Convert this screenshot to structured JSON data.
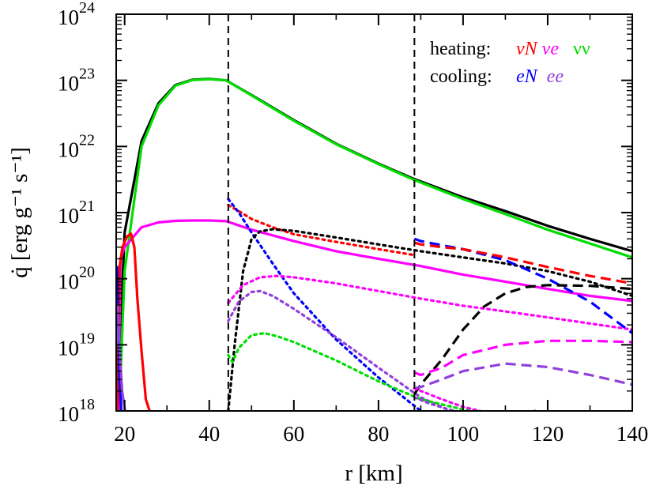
{
  "chart_data": {
    "type": "line",
    "xlabel": "r [km]",
    "ylabel": "q̇ [erg g⁻¹ s⁻¹]",
    "xlim": [
      18,
      140
    ],
    "ylim": [
      1e+18,
      1e+24
    ],
    "yscale": "log",
    "grid": false,
    "x_ticks": [
      20,
      40,
      60,
      80,
      100,
      120,
      140
    ],
    "y_ticks": [
      {
        "base": "10",
        "exp": "18",
        "value": 1e+18
      },
      {
        "base": "10",
        "exp": "19",
        "value": 1e+19
      },
      {
        "base": "10",
        "exp": "20",
        "value": 1e+20
      },
      {
        "base": "10",
        "exp": "21",
        "value": 1e+21
      },
      {
        "base": "10",
        "exp": "22",
        "value": 1e+22
      },
      {
        "base": "10",
        "exp": "23",
        "value": 1e+23
      },
      {
        "base": "10",
        "exp": "24",
        "value": 1e+24
      }
    ],
    "vlines": [
      44.5,
      88.5
    ],
    "legend": {
      "position": "top-right",
      "heating_label": "heating:",
      "cooling_label": "cooling:",
      "heating_items": [
        {
          "text": "νN",
          "color": "#ff0000"
        },
        {
          "text": "νe",
          "color": "#ff00ff"
        },
        {
          "text": "νν",
          "color": "#00dd00"
        }
      ],
      "cooling_items": [
        {
          "text": "eN",
          "color": "#0000ff"
        },
        {
          "text": "ee",
          "color": "#9040dd"
        }
      ]
    },
    "series": [
      {
        "color": "#000000",
        "dash": "solid",
        "x": [
          18.2,
          20,
          24,
          28,
          32,
          36,
          40,
          44,
          50,
          60,
          70,
          80,
          88,
          100,
          110,
          120,
          130,
          140
        ],
        "y": [
          1e+18,
          5e+20,
          1.2e+22,
          4.5e+22,
          8.5e+22,
          1.02e+23,
          1.05e+23,
          1e+23,
          6e+22,
          2.5e+22,
          1.1e+22,
          5.5e+21,
          3.3e+21,
          1.7e+21,
          1.05e+21,
          6.3e+20,
          4e+20,
          2.6e+20
        ]
      },
      {
        "color": "#00dd00",
        "dash": "solid",
        "x": [
          18.7,
          20,
          24,
          28,
          32,
          36,
          40,
          44,
          50,
          60,
          70,
          80,
          88,
          100,
          110,
          120,
          130,
          140
        ],
        "y": [
          1e+18,
          1.3e+20,
          1e+22,
          4.2e+22,
          8.3e+22,
          1.01e+23,
          1.04e+23,
          1e+23,
          5.9e+22,
          2.45e+22,
          1.08e+22,
          5.4e+21,
          3.2e+21,
          1.6e+21,
          9.5e+20,
          5.5e+20,
          3.4e+20,
          2.1e+20
        ]
      },
      {
        "color": "#ff00ff",
        "dash": "solid",
        "x": [
          18.5,
          19,
          20,
          24,
          28,
          32,
          36,
          40,
          44,
          50,
          60,
          70,
          80,
          90,
          100,
          110,
          120,
          130,
          140
        ],
        "y": [
          1e+18,
          2e+20,
          3e+20,
          6e+20,
          7.1e+20,
          7.5e+20,
          7.6e+20,
          7.6e+20,
          7.4e+20,
          5.5e+20,
          3.7e+20,
          2.6e+20,
          2e+20,
          1.55e+20,
          1.15e+20,
          9e+19,
          7e+19,
          5.5e+19,
          4.6e+19
        ]
      },
      {
        "color": "#ff0000",
        "dash": "solid",
        "x": [
          18.3,
          18.8,
          19.5,
          20.5,
          21.5,
          22.3,
          23,
          24,
          25,
          25.9
        ],
        "y": [
          1e+18,
          1.5e+20,
          3e+20,
          4.3e+20,
          4.8e+20,
          3e+20,
          5e+19,
          8e+18,
          1.5e+18,
          1e+18
        ]
      },
      {
        "color": "#0000ff",
        "dash": "solid",
        "x": [
          17.9,
          18.2,
          18.5,
          18.8,
          19.2
        ],
        "y": [
          1e+20,
          1.5e+20,
          2e+19,
          3e+18,
          1e+18
        ]
      },
      {
        "color": "#9040dd",
        "dash": "solid",
        "x": [
          18,
          18.4,
          18.8,
          19.4,
          20.1
        ],
        "y": [
          3e+19,
          4e+19,
          8e+18,
          2e+18,
          1e+18
        ]
      },
      {
        "color": "#ff0000",
        "dash": "dot",
        "x": [
          44.5,
          47,
          50,
          55,
          60,
          70,
          80,
          88
        ],
        "y": [
          1.3e+21,
          1.05e+21,
          8e+20,
          6e+20,
          4.7e+20,
          3.6e+20,
          2.8e+20,
          2.3e+20
        ]
      },
      {
        "color": "#0000ff",
        "dash": "dot",
        "x": [
          44.5,
          47,
          50,
          55,
          60,
          70,
          80,
          90,
          100,
          110,
          117
        ],
        "y": [
          1.6e+21,
          1e+21,
          5e+20,
          1.7e+20,
          6e+19,
          1.2e+19,
          3.2e+18,
          1e+18,
          3.5e+17,
          1.3e+17,
          1e+18
        ]
      },
      {
        "color": "#000000",
        "dash": "dot",
        "x": [
          44.5,
          46,
          48,
          50,
          52,
          55,
          60,
          70,
          80,
          90,
          100,
          110,
          120,
          130,
          140
        ],
        "y": [
          1e+18,
          1e+19,
          1.3e+20,
          4e+20,
          5.2e+20,
          5.6e+20,
          5.3e+20,
          4.2e+20,
          3.3e+20,
          2.6e+20,
          2.1e+20,
          1.7e+20,
          1.3e+20,
          9e+19,
          5.5e+19
        ]
      },
      {
        "color": "#ff00ff",
        "dash": "dot",
        "x": [
          44.5,
          48,
          52,
          56,
          60,
          70,
          80,
          90,
          100,
          110,
          120,
          130,
          140
        ],
        "y": [
          4.3e+19,
          8e+19,
          1.05e+20,
          1.1e+20,
          1.05e+20,
          8.5e+19,
          6.5e+19,
          5e+19,
          3.9e+19,
          3.2e+19,
          2.6e+19,
          2.1e+19,
          1.7e+19
        ]
      },
      {
        "color": "#9040dd",
        "dash": "dot",
        "x": [
          44.5,
          47,
          50,
          52,
          55,
          60,
          70,
          80,
          90,
          97
        ],
        "y": [
          2.3e+19,
          4.5e+19,
          6.3e+19,
          6.5e+19,
          5.5e+19,
          3.5e+19,
          1.3e+19,
          4.5e+18,
          1.6e+18,
          1e+18
        ]
      },
      {
        "color": "#00dd00",
        "dash": "dot",
        "x": [
          44.5,
          45.5,
          47,
          50,
          53,
          56,
          60,
          70,
          80,
          90,
          100,
          104
        ],
        "y": [
          7e+18,
          5.5e+18,
          9e+18,
          1.4e+19,
          1.5e+19,
          1.35e+19,
          1.1e+19,
          5.8e+18,
          2.8e+18,
          1.5e+18,
          1.05e+18,
          1e+18
        ]
      },
      {
        "color": "#0000ff",
        "dash": "dash",
        "x": [
          88.5,
          90,
          95,
          100,
          110,
          120,
          130,
          140
        ],
        "y": [
          4e+20,
          3.7e+20,
          3.2e+20,
          2.8e+20,
          1.9e+20,
          1e+20,
          4.5e+19,
          1.5e+19
        ]
      },
      {
        "color": "#ff0000",
        "dash": "dash",
        "x": [
          88.5,
          90,
          95,
          100,
          110,
          120,
          130,
          140
        ],
        "y": [
          3.5e+20,
          3.3e+20,
          3e+20,
          2.8e+20,
          2.1e+20,
          1.5e+20,
          1.1e+20,
          8.5e+19
        ]
      },
      {
        "color": "#000000",
        "dash": "dash",
        "x": [
          88.5,
          90,
          95,
          100,
          105,
          110,
          115,
          120,
          130,
          140
        ],
        "y": [
          1.8e+18,
          2.5e+18,
          6e+18,
          1.7e+19,
          3.8e+19,
          6e+19,
          7.5e+19,
          8e+19,
          7.8e+19,
          7e+19
        ]
      },
      {
        "color": "#ff00ff",
        "dash": "dash",
        "x": [
          88.5,
          90,
          95,
          100,
          110,
          120,
          130,
          140
        ],
        "y": [
          3.8e+18,
          3.5e+18,
          4.5e+18,
          7e+18,
          1e+19,
          1.15e+19,
          1.15e+19,
          1.1e+19
        ]
      },
      {
        "color": "#9040dd",
        "dash": "dash",
        "x": [
          88.5,
          90,
          95,
          100,
          110,
          120,
          130,
          140
        ],
        "y": [
          2.2e+18,
          2.3e+18,
          3e+18,
          4e+18,
          5.2e+18,
          4.6e+18,
          3.5e+18,
          2.5e+18
        ]
      },
      {
        "color": "#ff00ff",
        "dash": "dot",
        "x": [
          88.5,
          95,
          100,
          104
        ],
        "y": [
          2.2e+18,
          1.5e+18,
          1.15e+18,
          1e+18
        ]
      },
      {
        "color": "#9040dd",
        "dash": "dot",
        "x": [
          88.5,
          92,
          96,
          98
        ],
        "y": [
          1.6e+18,
          1.3e+18,
          1.08e+18,
          1e+18
        ]
      }
    ]
  }
}
